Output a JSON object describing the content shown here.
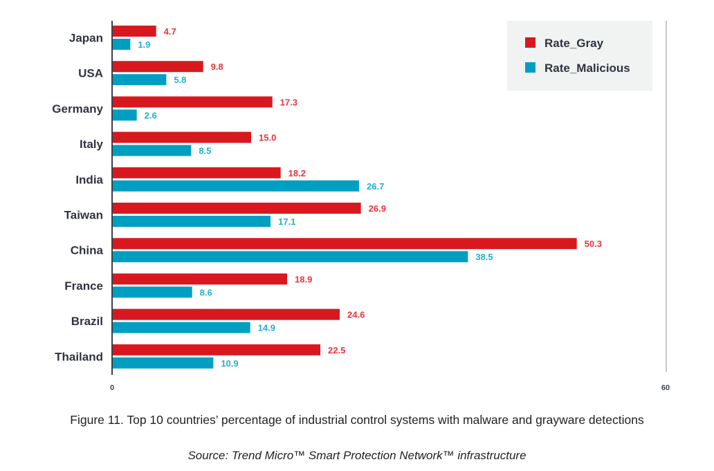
{
  "chart_data": {
    "type": "bar",
    "orientation": "horizontal",
    "title": "Figure 11. Top 10 countries' percentage of industrial control systems with malware and grayware detections",
    "subtitle": "Source: Trend Micro™ Smart Protection Network™ infrastructure",
    "xlabel": "",
    "ylabel": "",
    "xlim": [
      0,
      60
    ],
    "x_ticks": [
      "0",
      "60"
    ],
    "grid": false,
    "legend_position": "top-right",
    "categories": [
      "Japan",
      "USA",
      "Germany",
      "Italy",
      "India",
      "Taiwan",
      "China",
      "France",
      "Brazil",
      "Thailand"
    ],
    "series": [
      {
        "name": "Rate_Gray",
        "color": "#d7191f",
        "label_color": "#e8333a",
        "values": [
          4.7,
          9.8,
          17.3,
          15.0,
          18.2,
          26.9,
          50.3,
          18.9,
          24.6,
          22.5
        ],
        "labels": [
          "4.7",
          "9.8",
          "17.3",
          "15.0",
          "18.2",
          "26.9",
          "50.3",
          "18.9",
          "24.6",
          "22.5"
        ]
      },
      {
        "name": "Rate_Malicious",
        "color": "#009fc2",
        "label_color": "#22aed0",
        "values": [
          1.9,
          5.8,
          2.6,
          8.5,
          26.7,
          17.1,
          38.5,
          8.6,
          14.9,
          10.9
        ],
        "labels": [
          "1.9",
          "5.8",
          "2.6",
          "8.5",
          "26.7",
          "17.1",
          "38.5",
          "8.6",
          "14.9",
          "10.9"
        ]
      }
    ]
  },
  "caption": {
    "title": "Figure 11. Top 10 countries’ percentage of industrial control systems with malware and grayware detections",
    "source": "Source: Trend Micro™ Smart Protection Network™ infrastructure"
  }
}
